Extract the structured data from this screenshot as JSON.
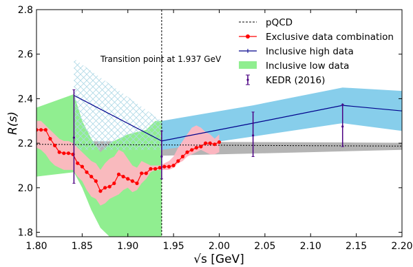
{
  "chart_data": {
    "type": "line",
    "xlabel": "√s [GeV]",
    "ylabel": "R(s)",
    "xlim": [
      1.8,
      2.2
    ],
    "ylim": [
      1.78,
      2.8
    ],
    "xticks": [
      "1.80",
      "1.85",
      "1.90",
      "1.95",
      "2.00",
      "2.05",
      "2.10",
      "2.15",
      "2.20"
    ],
    "yticks": [
      "1.8",
      "2.0",
      "2.2",
      "2.4",
      "2.6",
      "2.8"
    ],
    "annotation": "Transition point at 1.937 GeV",
    "transition_x": 1.937,
    "legend": {
      "position": "top-right",
      "entries": [
        "pQCD",
        "Exclusive data combination",
        "Inclusive high data",
        "Inclusive low data",
        "KEDR (2016)"
      ]
    },
    "colors": {
      "pqcd": "#000000",
      "pqcd_band": "#b4b4b4",
      "exclusive": "#ff0000",
      "exclusive_band": "#ffb6c1",
      "inclusive_high": "#00008b",
      "inclusive_high_band": "#87ceeb",
      "inclusive_low_band": "#90ee90",
      "kedr": "#4b0082",
      "hatch": "#add8e6"
    },
    "series": [
      {
        "name": "pQCD",
        "x": [
          1.8,
          1.85,
          1.9,
          1.95,
          2.0,
          2.05,
          2.1,
          2.15,
          2.2
        ],
        "y": [
          2.195,
          2.194,
          2.193,
          2.192,
          2.191,
          2.19,
          2.189,
          2.188,
          2.187
        ],
        "band_lo": [
          2.13,
          2.135,
          2.14,
          2.145,
          2.15,
          2.155,
          2.16,
          2.165,
          2.17
        ],
        "band_hi": [
          2.21,
          2.209,
          2.208,
          2.207,
          2.206,
          2.205,
          2.204,
          2.203,
          2.202
        ]
      },
      {
        "name": "Exclusive data combination",
        "x": [
          1.8,
          1.805,
          1.81,
          1.815,
          1.82,
          1.825,
          1.83,
          1.835,
          1.84,
          1.845,
          1.85,
          1.855,
          1.86,
          1.865,
          1.87,
          1.875,
          1.88,
          1.885,
          1.89,
          1.895,
          1.9,
          1.905,
          1.91,
          1.915,
          1.92,
          1.925,
          1.93,
          1.935,
          1.94,
          1.945,
          1.95,
          1.955,
          1.96,
          1.965,
          1.97,
          1.975,
          1.98,
          1.985,
          1.99,
          1.995,
          2.0
        ],
        "y": [
          2.26,
          2.26,
          2.26,
          2.22,
          2.19,
          2.16,
          2.155,
          2.155,
          2.15,
          2.11,
          2.095,
          2.07,
          2.05,
          2.03,
          1.985,
          2.0,
          2.005,
          2.02,
          2.06,
          2.05,
          2.04,
          2.03,
          2.02,
          2.065,
          2.065,
          2.085,
          2.085,
          2.09,
          2.095,
          2.095,
          2.1,
          2.12,
          2.14,
          2.16,
          2.17,
          2.18,
          2.185,
          2.2,
          2.2,
          2.195,
          2.205
        ],
        "band_lo": [
          2.18,
          2.17,
          2.15,
          2.12,
          2.1,
          2.09,
          2.08,
          2.08,
          2.08,
          2.05,
          2.03,
          1.99,
          1.96,
          1.95,
          1.92,
          1.93,
          1.95,
          1.96,
          1.97,
          1.99,
          2.0,
          1.98,
          1.99,
          2.02,
          2.04,
          2.07,
          2.08,
          2.08,
          2.08,
          2.08,
          2.09,
          2.11,
          2.12,
          2.14,
          2.15,
          2.16,
          2.17,
          2.16,
          2.15,
          2.15,
          2.16
        ],
        "band_hi": [
          2.3,
          2.3,
          2.28,
          2.26,
          2.24,
          2.22,
          2.21,
          2.21,
          2.2,
          2.18,
          2.16,
          2.14,
          2.12,
          2.11,
          2.08,
          2.11,
          2.13,
          2.14,
          2.17,
          2.16,
          2.13,
          2.1,
          2.09,
          2.12,
          2.11,
          2.1,
          2.1,
          2.1,
          2.11,
          2.12,
          2.14,
          2.18,
          2.21,
          2.24,
          2.27,
          2.28,
          2.27,
          2.25,
          2.24,
          2.22,
          2.24
        ]
      },
      {
        "name": "Inclusive high data",
        "x": [
          1.841,
          1.937,
          2.037,
          2.135,
          2.2
        ],
        "y": [
          2.415,
          2.21,
          2.29,
          2.37,
          2.345
        ],
        "band_lo": [
          2.17,
          2.17,
          2.23,
          2.29,
          2.255
        ],
        "band_hi": [
          2.58,
          2.3,
          2.37,
          2.45,
          2.435
        ]
      },
      {
        "name": "Inclusive low data",
        "x": [
          1.8,
          1.841,
          1.85,
          1.86,
          1.87,
          1.88,
          1.89,
          1.9,
          1.91,
          1.92,
          1.93,
          1.937
        ],
        "y": [
          2.2,
          2.23,
          2.15,
          2.1,
          2.05,
          2.05,
          2.04,
          2.03,
          2.02,
          2.02,
          2.02,
          2.02
        ],
        "band_lo": [
          2.05,
          2.07,
          2.0,
          1.9,
          1.82,
          1.78,
          1.78,
          1.78,
          1.78,
          1.78,
          1.78,
          1.78
        ],
        "band_hi": [
          2.36,
          2.42,
          2.3,
          2.22,
          2.16,
          2.2,
          2.22,
          2.24,
          2.25,
          2.26,
          2.3,
          2.3
        ]
      },
      {
        "name": "KEDR (2016)",
        "x": [
          1.841,
          1.937,
          2.037,
          2.135
        ],
        "y": [
          2.225,
          2.14,
          2.235,
          2.275
        ],
        "err_lo": [
          0.205,
          0.1,
          0.095,
          0.09
        ],
        "err_hi": [
          0.215,
          0.115,
          0.105,
          0.1
        ]
      }
    ]
  }
}
